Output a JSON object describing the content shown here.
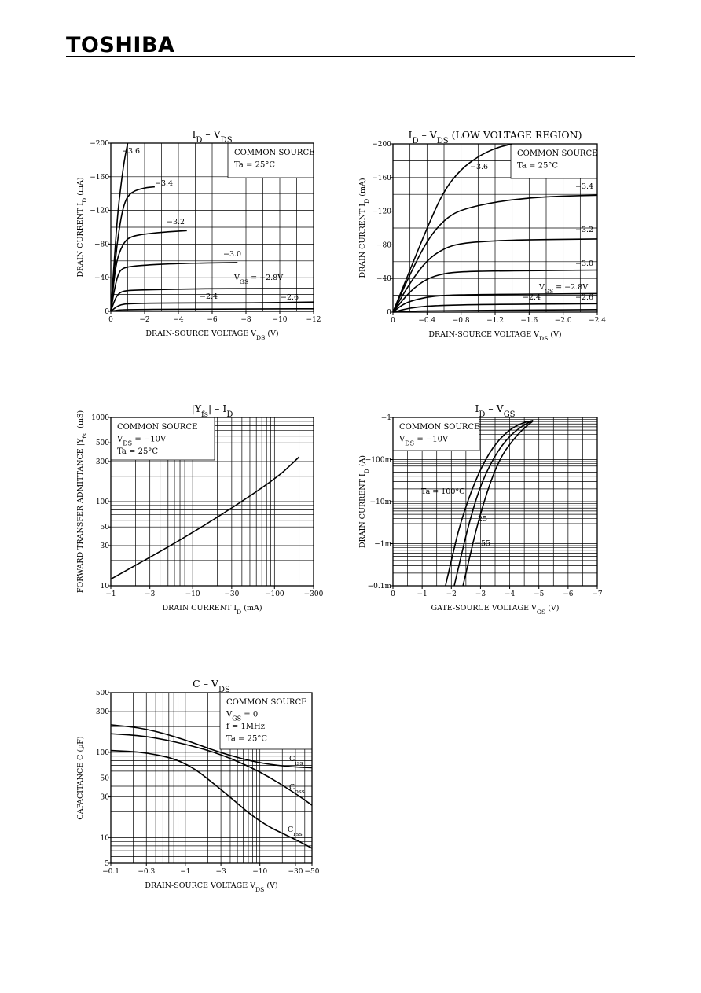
{
  "header": {
    "logo": "TOSHIBA"
  },
  "chart_data": [
    {
      "id": "id_vds",
      "type": "line",
      "title": "I_D – V_DS",
      "xlabel": "DRAIN-SOURCE VOLTAGE   V_DS  (V)",
      "ylabel": "DRAIN CURRENT  I_D  (mA)",
      "xlim": [
        0,
        -12
      ],
      "ylim": [
        0,
        -200
      ],
      "xticks": [
        "0",
        "−2",
        "−4",
        "−6",
        "−8",
        "−10",
        "−12"
      ],
      "yticks": [
        "0",
        "−40",
        "−80",
        "−120",
        "−160",
        "−200"
      ],
      "legend": {
        "position": "top-right",
        "lines": [
          "COMMON SOURCE",
          "Ta = 25°C"
        ]
      },
      "series_label_prefix": "V_GS = ",
      "series": [
        {
          "name": "−3.6",
          "x": [
            0,
            -0.2,
            -0.4,
            -0.6,
            -0.8,
            -1.0
          ],
          "y": [
            0,
            -60,
            -115,
            -150,
            -180,
            -200
          ]
        },
        {
          "name": "−3.4",
          "x": [
            0,
            -0.2,
            -0.5,
            -0.8,
            -1.2,
            -2.0,
            -2.6
          ],
          "y": [
            0,
            -50,
            -100,
            -130,
            -142,
            -147,
            -148
          ]
        },
        {
          "name": "−3.2",
          "x": [
            0,
            -0.2,
            -0.4,
            -0.8,
            -1.2,
            -2.0,
            -3.0,
            -4.5
          ],
          "y": [
            0,
            -40,
            -65,
            -83,
            -89,
            -92,
            -94,
            -96
          ]
        },
        {
          "name": "−3.0",
          "x": [
            0,
            -0.2,
            -0.4,
            -0.6,
            -1.0,
            -2.0,
            -4.0,
            -7.5
          ],
          "y": [
            0,
            -25,
            -42,
            -50,
            -53,
            -55,
            -57,
            -58
          ]
        },
        {
          "name": "−2.8",
          "x": [
            0,
            -0.2,
            -0.4,
            -0.7,
            -1.2,
            -3.0,
            -6.0,
            -12.0
          ],
          "y": [
            0,
            -12,
            -20,
            -24,
            -25,
            -26,
            -27,
            -27
          ]
        },
        {
          "name": "−2.6",
          "x": [
            0,
            -0.3,
            -0.6,
            -1.0,
            -3.0,
            -8.0,
            -12.0
          ],
          "y": [
            0,
            -5,
            -8,
            -9,
            -10,
            -10,
            -11
          ]
        },
        {
          "name": "−2.4",
          "x": [
            0,
            -0.4,
            -1.0,
            -4.0,
            -12.0
          ],
          "y": [
            0,
            -1.5,
            -2,
            -2.5,
            -3
          ]
        }
      ],
      "series_labels": [
        "−3.6",
        "−3.4",
        "−3.2",
        "−3.0",
        "V_GS = −2.8V",
        "−2.6",
        "−2.4"
      ]
    },
    {
      "id": "id_vds_low",
      "type": "line",
      "title": "I_D – V_DS   (LOW VOLTAGE REGION)",
      "xlabel": "DRAIN-SOURCE VOLTAGE   V_DS  (V)",
      "ylabel": "DRAIN CURRENT  I_D  (mA)",
      "xlim": [
        0,
        -2.4
      ],
      "ylim": [
        0,
        -200
      ],
      "xticks": [
        "0",
        "−0.4",
        "−0.8",
        "−1.2",
        "−1.6",
        "−2.0",
        "−2.4"
      ],
      "yticks": [
        "0",
        "−40",
        "−80",
        "−120",
        "−160",
        "−200"
      ],
      "legend": {
        "position": "top-right",
        "lines": [
          "COMMON SOURCE",
          "Ta = 25°C"
        ]
      },
      "series": [
        {
          "name": "−3.6",
          "x": [
            0,
            -0.2,
            -0.4,
            -0.6,
            -0.8,
            -1.0,
            -1.2,
            -1.4
          ],
          "y": [
            0,
            -50,
            -100,
            -145,
            -170,
            -185,
            -195,
            -200
          ]
        },
        {
          "name": "−3.4",
          "x": [
            0,
            -0.2,
            -0.4,
            -0.6,
            -0.8,
            -1.2,
            -1.6,
            -2.0,
            -2.4
          ],
          "y": [
            0,
            -45,
            -85,
            -110,
            -122,
            -131,
            -136,
            -138,
            -139
          ]
        },
        {
          "name": "−3.2",
          "x": [
            0,
            -0.2,
            -0.4,
            -0.6,
            -0.8,
            -1.2,
            -1.6,
            -2.4
          ],
          "y": [
            0,
            -35,
            -62,
            -76,
            -82,
            -85,
            -86,
            -87
          ]
        },
        {
          "name": "−3.0",
          "x": [
            0,
            -0.2,
            -0.4,
            -0.6,
            -0.8,
            -1.2,
            -2.4
          ],
          "y": [
            0,
            -25,
            -40,
            -46,
            -48,
            -49,
            -50
          ]
        },
        {
          "name": "−2.8",
          "x": [
            0,
            -0.1,
            -0.2,
            -0.4,
            -0.6,
            -1.0,
            -2.4
          ],
          "y": [
            0,
            -8,
            -13,
            -18,
            -20,
            -21,
            -22
          ]
        },
        {
          "name": "−2.6",
          "x": [
            0,
            -0.2,
            -0.4,
            -0.6,
            -1.0,
            -2.4
          ],
          "y": [
            0,
            -5,
            -7,
            -8,
            -9,
            -10
          ]
        },
        {
          "name": "−2.4",
          "x": [
            0,
            -0.3,
            -1.0,
            -2.4
          ],
          "y": [
            0,
            -1.5,
            -2,
            -3
          ]
        }
      ],
      "series_labels": [
        "−3.6",
        "−3.4",
        "−3.2",
        "−3.0",
        "V_GS = −2.8V",
        "−2.6",
        "−2.4"
      ]
    },
    {
      "id": "yfs_id",
      "type": "line",
      "title": "|Y_fs| – I_D",
      "xlabel": "DRAIN CURRENT   I_D  (mA)",
      "ylabel": "FORWARD TRANSFER ADMITTANCE |Y_fs|  (mS)",
      "xscale": "log",
      "yscale": "log",
      "xlim": [
        -1,
        -300
      ],
      "ylim": [
        10,
        1000
      ],
      "xticks": [
        "−1",
        "−3",
        "−10",
        "−30",
        "−100",
        "−300"
      ],
      "yticks": [
        "10",
        "30",
        "50",
        "100",
        "300",
        "500",
        "1000"
      ],
      "legend": {
        "position": "top-left",
        "lines": [
          "COMMON SOURCE",
          "V_DS = −10V",
          "Ta = 25°C"
        ]
      },
      "series": [
        {
          "name": "",
          "x": [
            -1,
            -10,
            -100,
            -200
          ],
          "y": [
            12,
            42,
            180,
            340
          ]
        }
      ]
    },
    {
      "id": "id_vgs",
      "type": "line",
      "title": "I_D – V_GS",
      "xlabel": "GATE-SOURCE VOLTAGE   V_GS  (V)",
      "ylabel": "DRAIN CURRENT  I_D  (A)",
      "yscale": "log",
      "xlim": [
        0,
        -7
      ],
      "ylim": [
        -0.0001,
        -1
      ],
      "xticks": [
        "0",
        "−1",
        "−2",
        "−3",
        "−4",
        "−5",
        "−6",
        "−7"
      ],
      "yticks": [
        "−0.1m",
        "−1m",
        "−10m",
        "−100m",
        "−1"
      ],
      "legend": {
        "position": "top-left",
        "lines": [
          "COMMON SOURCE",
          "V_DS = −10V"
        ]
      },
      "series": [
        {
          "name": "Ta = 100°C",
          "x": [
            -1.8,
            -2.0,
            -2.3,
            -2.8,
            -3.3,
            -3.8,
            -4.3,
            -4.8
          ],
          "y": [
            -0.0001,
            -0.0004,
            -0.003,
            -0.03,
            -0.15,
            -0.4,
            -0.7,
            -0.85
          ]
        },
        {
          "name": "25",
          "x": [
            -2.1,
            -2.3,
            -2.6,
            -3.0,
            -3.5,
            -4.0,
            -4.5,
            -4.8
          ],
          "y": [
            -0.0001,
            -0.0004,
            -0.003,
            -0.025,
            -0.13,
            -0.37,
            -0.68,
            -0.85
          ]
        },
        {
          "name": "−55",
          "x": [
            -2.4,
            -2.6,
            -2.9,
            -3.3,
            -3.7,
            -4.2,
            -4.6,
            -4.8
          ],
          "y": [
            -0.0001,
            -0.0004,
            -0.003,
            -0.025,
            -0.12,
            -0.35,
            -0.65,
            -0.82
          ]
        }
      ]
    },
    {
      "id": "c_vds",
      "type": "line",
      "title": "C – V_DS",
      "xlabel": "DRAIN-SOURCE VOLTAGE   V_DS  (V)",
      "ylabel": "CAPACITANCE   C   (pF)",
      "xscale": "log",
      "yscale": "log",
      "xlim": [
        -0.1,
        -50
      ],
      "ylim": [
        5,
        500
      ],
      "xticks": [
        "−0.1",
        "−0.3",
        "−1",
        "−3",
        "−10",
        "−30",
        "−50"
      ],
      "yticks": [
        "5",
        "10",
        "30",
        "50",
        "100",
        "300",
        "500"
      ],
      "legend": {
        "position": "top-right",
        "lines": [
          "COMMON SOURCE",
          "V_GS = 0",
          "f = 1MHz",
          "Ta = 25°C"
        ]
      },
      "series": [
        {
          "name": "C_iss",
          "x": [
            -0.1,
            -0.3,
            -1,
            -3,
            -10,
            -30,
            -50
          ],
          "y": [
            210,
            190,
            140,
            98,
            74,
            67,
            66
          ]
        },
        {
          "name": "C_oss",
          "x": [
            -0.1,
            -0.3,
            -1,
            -3,
            -10,
            -30,
            -50
          ],
          "y": [
            165,
            155,
            125,
            95,
            60,
            33,
            24
          ]
        },
        {
          "name": "C_rss",
          "x": [
            -0.1,
            -0.3,
            -1,
            -3,
            -10,
            -30,
            -50
          ],
          "y": [
            105,
            100,
            78,
            37,
            15,
            9.5,
            7.5
          ]
        }
      ]
    }
  ]
}
